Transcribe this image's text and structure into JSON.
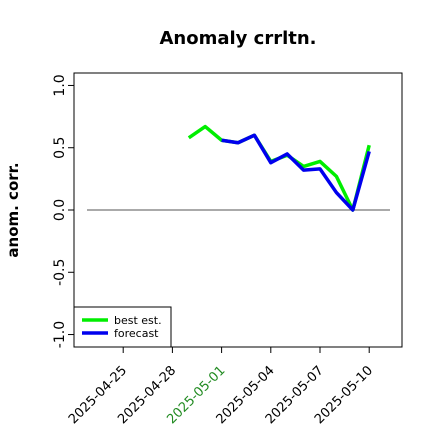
{
  "chart_data": {
    "type": "line",
    "title": "Anomaly crrltn.",
    "ylabel": "anom. corr.",
    "x": [
      "2025-04-29",
      "2025-04-30",
      "2025-05-01",
      "2025-05-02",
      "2025-05-03",
      "2025-05-04",
      "2025-05-05",
      "2025-05-06",
      "2025-05-07",
      "2025-05-08",
      "2025-05-09",
      "2025-05-10"
    ],
    "series": [
      {
        "name": "best est.",
        "color": "#00ee00",
        "values": [
          0.58,
          0.67,
          0.56,
          0.54,
          0.6,
          0.39,
          0.44,
          0.35,
          0.39,
          0.27,
          0.0,
          0.52
        ]
      },
      {
        "name": "forecast",
        "color": "#0000ee",
        "values": [
          null,
          null,
          0.56,
          0.54,
          0.6,
          0.38,
          0.45,
          0.32,
          0.33,
          0.14,
          0.0,
          0.47
        ]
      }
    ],
    "xlim": [
      "2025-04-22",
      "2025-05-12"
    ],
    "xticks": [
      "2025-04-25",
      "2025-04-28",
      "2025-05-01",
      "2025-05-04",
      "2025-05-07",
      "2025-05-10"
    ],
    "highlight_xtick": "2025-05-01",
    "highlight_color": "#228b22",
    "ylim": [
      -1.1,
      1.1
    ],
    "yticks": [
      {
        "value": -1,
        "label": "-1.0"
      },
      {
        "value": -0.5,
        "label": "-0.5"
      },
      {
        "value": 0,
        "label": "0.0"
      },
      {
        "value": 0.5,
        "label": "0.5"
      },
      {
        "value": 1,
        "label": "1.0"
      }
    ],
    "hline": 0,
    "legend": "lower left"
  }
}
